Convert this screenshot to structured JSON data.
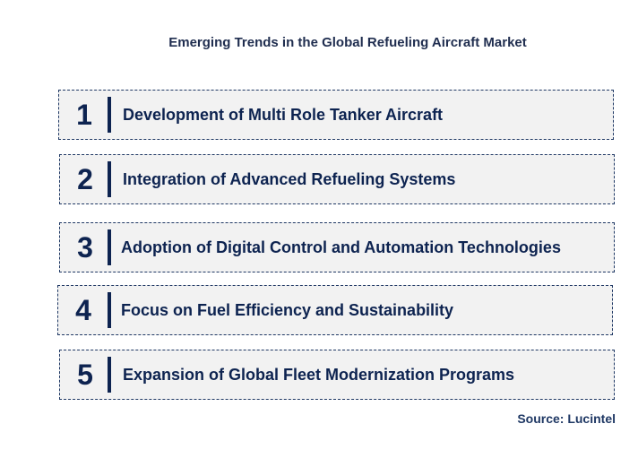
{
  "title": "Emerging Trends in the Global Refueling Aircraft Market",
  "trends": [
    {
      "number": "1",
      "label": "Development of Multi Role Tanker Aircraft"
    },
    {
      "number": "2",
      "label": "Integration of Advanced Refueling Systems"
    },
    {
      "number": "3",
      "label": "Adoption of Digital Control and Automation Technologies"
    },
    {
      "number": "4",
      "label": "Focus on Fuel Efficiency and Sustainability"
    },
    {
      "number": "5",
      "label": "Expansion of Global Fleet Modernization Programs"
    }
  ],
  "source": "Source: Lucintel",
  "colors": {
    "accent": "#0d2350",
    "box_fill": "#f2f2f2"
  }
}
